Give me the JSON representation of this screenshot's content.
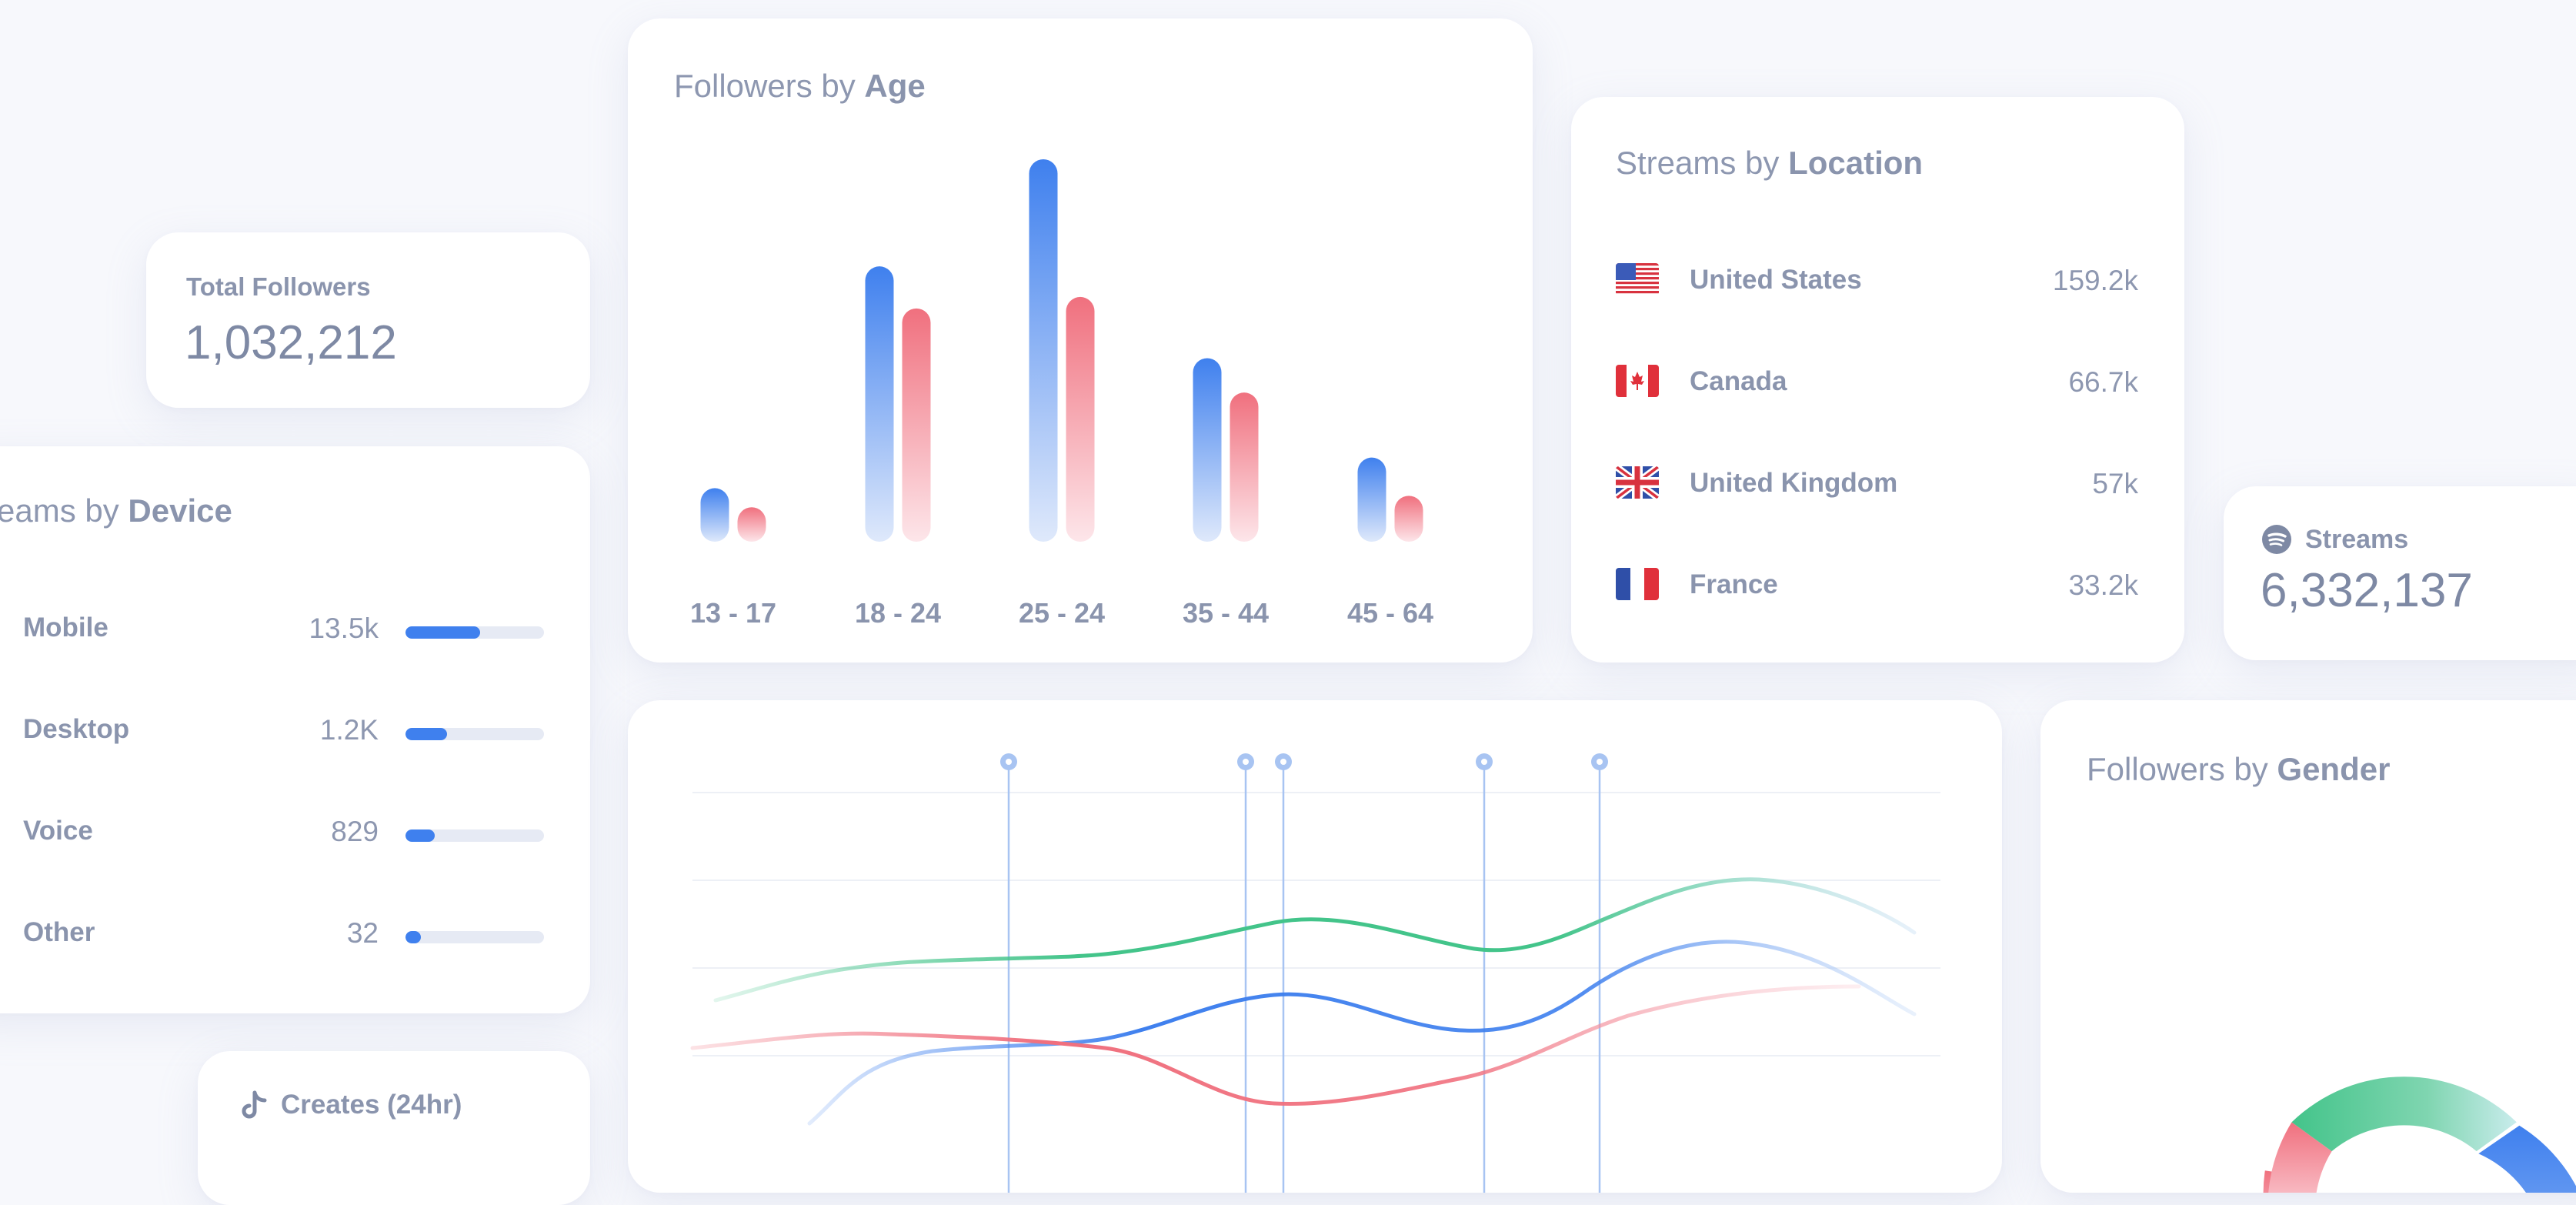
{
  "total_followers": {
    "label": "Total Followers",
    "value": "1,032,212"
  },
  "streams_by_device": {
    "title_prefix": "eams by ",
    "title_bold": "Device",
    "items": [
      {
        "label": "Mobile",
        "value": "13.5k",
        "fraction": 0.54
      },
      {
        "label": "Desktop",
        "value": "1.2K",
        "fraction": 0.3
      },
      {
        "label": "Voice",
        "value": "829",
        "fraction": 0.21
      },
      {
        "label": "Other",
        "value": "32",
        "fraction": 0.11
      }
    ]
  },
  "creates": {
    "label": "Creates (24hr)",
    "icon": "tiktok-icon"
  },
  "followers_by_age": {
    "title_prefix": "Followers by ",
    "title_bold": "Age",
    "colors": {
      "blue": "#3f80ee",
      "pink": "#f0707e"
    },
    "chart_data": {
      "type": "bar",
      "categories": [
        "13 - 17",
        "18 - 24",
        "25 - 24",
        "35 - 44",
        "45 - 64"
      ],
      "series": [
        {
          "values": [
            14,
            72,
            100,
            48,
            22
          ]
        },
        {
          "values": [
            9,
            61,
            64,
            39,
            12
          ]
        }
      ]
    }
  },
  "streams_by_location": {
    "title_prefix": "Streams by ",
    "title_bold": "Location",
    "items": [
      {
        "country": "United States",
        "value": "159.2k",
        "flag": "us-flag"
      },
      {
        "country": "Canada",
        "value": "66.7k",
        "flag": "canada-flag"
      },
      {
        "country": "United Kingdom",
        "value": "57k",
        "flag": "uk-flag"
      },
      {
        "country": "France",
        "value": "33.2k",
        "flag": "france-flag"
      }
    ]
  },
  "streams": {
    "label": "Streams",
    "value": "6,332,137",
    "icon": "spotify-icon"
  },
  "followers_by_gender": {
    "title_prefix": "Followers by ",
    "title_bold": "Gender"
  },
  "line_chart": {
    "colors": {
      "green": "#43c48a",
      "blue": "#3f80ee",
      "pink": "#f0707e"
    }
  }
}
